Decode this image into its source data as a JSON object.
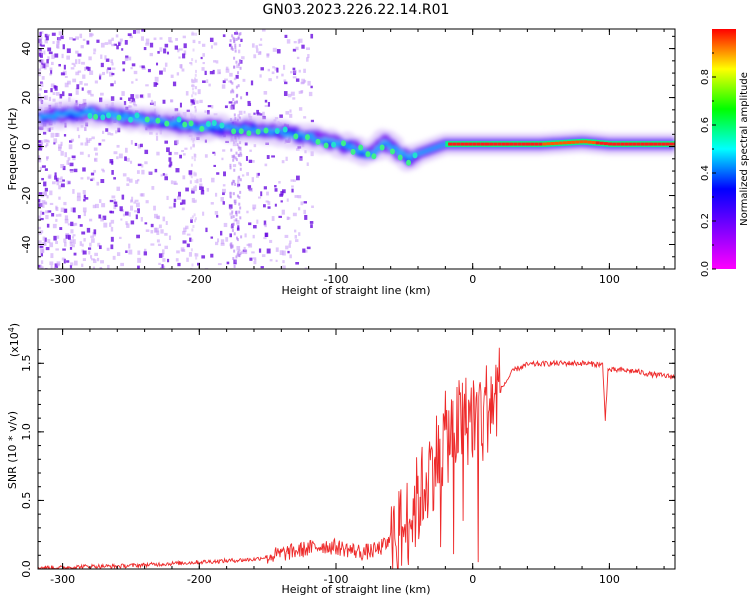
{
  "title": "GN03.2023.226.22.14.R01",
  "chart_data": [
    {
      "type": "heatmap",
      "xlabel": "Height of straight line (km)",
      "ylabel": "Frequency (Hz)",
      "xlim": [
        -318,
        148
      ],
      "ylim": [
        -50,
        48
      ],
      "xticks": [
        -300,
        -200,
        -100,
        0,
        100
      ],
      "yticks": [
        -40,
        -20,
        0,
        20,
        40
      ],
      "colorbar": {
        "label": "Normalized spectral amplitude",
        "range": [
          0.0,
          1.0
        ],
        "ticks": [
          0.0,
          0.2,
          0.4,
          0.6,
          0.8
        ],
        "colors": [
          "#ff00ff",
          "#7f00ff",
          "#0000ff",
          "#00ffff",
          "#00ff00",
          "#ffff00",
          "#ff0000"
        ]
      },
      "ridge": {
        "x": [
          -318,
          -280,
          -240,
          -200,
          -160,
          -120,
          -90,
          -75,
          -65,
          -55,
          -48,
          -40,
          -30,
          -20,
          0,
          20,
          50,
          80,
          100,
          148
        ],
        "y": [
          12,
          14,
          11,
          8,
          7,
          4,
          0,
          -4,
          2,
          -2,
          -5,
          -3,
          -1,
          1,
          1,
          1,
          1,
          2,
          1,
          1
        ]
      }
    },
    {
      "type": "line",
      "xlabel": "Height of straight line (km)",
      "ylabel": "SNR (10 * v/v)",
      "exponent": "4",
      "xlim": [
        -318,
        148
      ],
      "ylim": [
        0,
        1.75
      ],
      "xticks": [
        -300,
        -200,
        -100,
        0,
        100
      ],
      "yticks": [
        0.0,
        0.5,
        1.0,
        1.5
      ],
      "color": "#ee2a2a",
      "series": [
        {
          "x": [
            -318,
            -300,
            -280,
            -260,
            -240,
            -220,
            -200,
            -180,
            -160,
            -150,
            -140,
            -130,
            -120,
            -110,
            -100,
            -90,
            -80,
            -70,
            -60,
            -50,
            -40,
            -30,
            -20,
            -10,
            0,
            10,
            20,
            30,
            40,
            60,
            80,
            95,
            97,
            99,
            110,
            120,
            125,
            130,
            148
          ],
          "y": [
            0.01,
            0.01,
            0.02,
            0.02,
            0.03,
            0.04,
            0.05,
            0.06,
            0.07,
            0.09,
            0.11,
            0.13,
            0.15,
            0.17,
            0.16,
            0.14,
            0.12,
            0.14,
            0.2,
            0.3,
            0.5,
            0.75,
            0.95,
            1.05,
            1.12,
            1.18,
            1.3,
            1.45,
            1.49,
            1.5,
            1.5,
            1.49,
            1.1,
            1.45,
            1.45,
            1.44,
            1.43,
            1.42,
            1.4
          ]
        }
      ]
    }
  ]
}
